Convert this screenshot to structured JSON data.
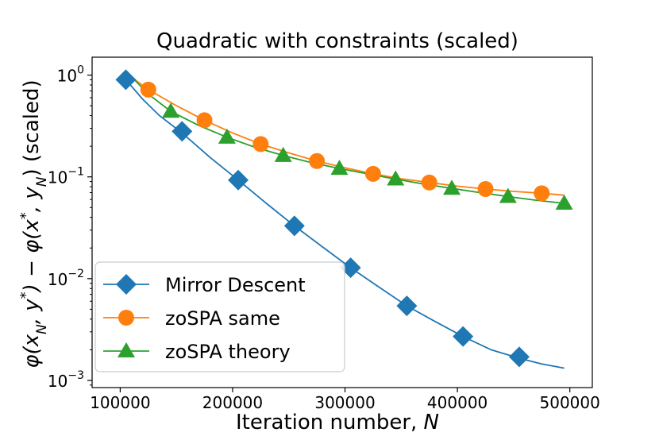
{
  "chart_data": {
    "type": "line",
    "title": "Quadratic with constraints (scaled)",
    "xlabel": "Iteration number, N",
    "ylabel": "φ(x_N, y*) − φ(x*, y_N) (scaled)",
    "yscale": "log",
    "xlim": [
      75000,
      520000
    ],
    "ylim": [
      0.00085,
      1.5
    ],
    "grid": false,
    "legend_position": "lower-left",
    "x_ticks": [
      100000,
      200000,
      300000,
      400000,
      500000
    ],
    "x_tick_labels": [
      "100000",
      "200000",
      "300000",
      "400000",
      "500000"
    ],
    "y_ticks": [
      0.001,
      0.01,
      0.1,
      1
    ],
    "y_tick_labels": [
      {
        "base": "10",
        "exp": "−3"
      },
      {
        "base": "10",
        "exp": "−2"
      },
      {
        "base": "10",
        "exp": "−1"
      },
      {
        "base": "10",
        "exp": "0"
      }
    ],
    "series": [
      {
        "name": "Mirror Descent",
        "color": "#1f77b4",
        "marker": "diamond",
        "line_x": [
          105000,
          120000,
          135000,
          155000,
          180000,
          205000,
          230000,
          255000,
          280000,
          305000,
          330000,
          355000,
          380000,
          405000,
          430000,
          455000,
          475000,
          495000
        ],
        "line_y": [
          0.9,
          0.58,
          0.4,
          0.27,
          0.155,
          0.093,
          0.055,
          0.033,
          0.0205,
          0.0128,
          0.0083,
          0.0054,
          0.0038,
          0.0027,
          0.002,
          0.00165,
          0.00145,
          0.00132
        ],
        "marker_x": [
          105000,
          155000,
          205000,
          255000,
          305000,
          355000,
          405000,
          455000
        ],
        "marker_y": [
          0.9,
          0.28,
          0.093,
          0.033,
          0.0128,
          0.0054,
          0.0027,
          0.0017
        ]
      },
      {
        "name": "zoSPA same",
        "color": "#ff7f0e",
        "marker": "circle",
        "line_x": [
          105000,
          125000,
          150000,
          175000,
          200000,
          225000,
          250000,
          275000,
          300000,
          325000,
          350000,
          375000,
          400000,
          425000,
          450000,
          475000,
          495000
        ],
        "line_y": [
          1.05,
          0.72,
          0.5,
          0.36,
          0.27,
          0.21,
          0.172,
          0.143,
          0.123,
          0.107,
          0.096,
          0.088,
          0.081,
          0.076,
          0.072,
          0.069,
          0.066
        ],
        "marker_x": [
          125000,
          175000,
          225000,
          275000,
          325000,
          375000,
          425000,
          475000
        ],
        "marker_y": [
          0.72,
          0.36,
          0.21,
          0.143,
          0.107,
          0.088,
          0.076,
          0.069
        ]
      },
      {
        "name": "zoSPA theory",
        "color": "#2ca02c",
        "marker": "triangle",
        "line_x": [
          105000,
          125000,
          145000,
          170000,
          195000,
          220000,
          245000,
          270000,
          295000,
          320000,
          345000,
          370000,
          395000,
          420000,
          445000,
          470000,
          495000
        ],
        "line_y": [
          1.1,
          0.65,
          0.44,
          0.32,
          0.245,
          0.195,
          0.162,
          0.138,
          0.121,
          0.107,
          0.095,
          0.085,
          0.077,
          0.07,
          0.064,
          0.059,
          0.055
        ],
        "marker_x": [
          145000,
          195000,
          245000,
          295000,
          345000,
          395000,
          445000,
          495000
        ],
        "marker_y": [
          0.44,
          0.245,
          0.162,
          0.121,
          0.095,
          0.077,
          0.064,
          0.055
        ]
      }
    ]
  }
}
